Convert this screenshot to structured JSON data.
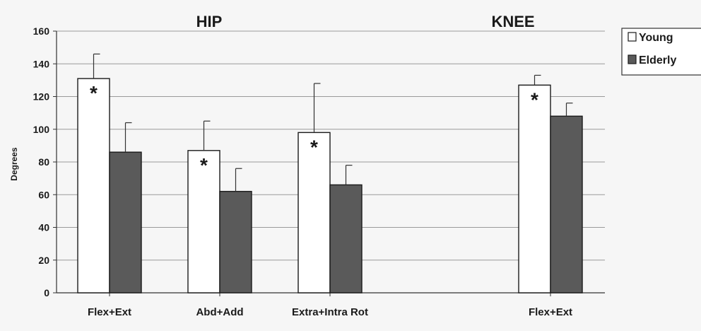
{
  "chart_data": {
    "type": "bar",
    "title": "",
    "group_labels": [
      "HIP",
      "KNEE"
    ],
    "xlabel": "",
    "ylabel": "Degrees",
    "ylim": [
      0,
      160
    ],
    "yticks": [
      0,
      20,
      40,
      60,
      80,
      100,
      120,
      140,
      160
    ],
    "grid": true,
    "legend_position": "top-right",
    "categories": [
      "Flex+Ext",
      "Abd+Add",
      "Extra+Intra Rot",
      "Flex+Ext"
    ],
    "category_group": [
      "HIP",
      "HIP",
      "HIP",
      "KNEE"
    ],
    "series": [
      {
        "name": "Young",
        "color": "#ffffff",
        "values": [
          131,
          87,
          98,
          127
        ],
        "error": [
          15,
          18,
          30,
          6
        ],
        "significance": [
          "*",
          "*",
          "*",
          "*"
        ]
      },
      {
        "name": "Elderly",
        "color": "#5a5a5a",
        "values": [
          86,
          62,
          66,
          108
        ],
        "error": [
          18,
          14,
          12,
          8
        ]
      }
    ],
    "annotations": [
      "*"
    ]
  }
}
